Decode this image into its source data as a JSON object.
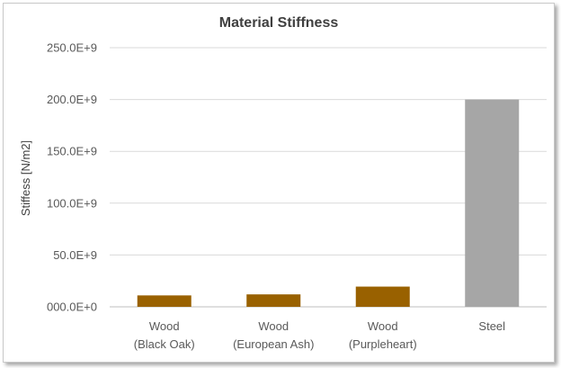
{
  "chart_data": {
    "type": "bar",
    "title": "Material Stiffness",
    "xlabel": "",
    "ylabel": "Stiffess [N/m2]",
    "categories": [
      [
        "Wood",
        "(Black Oak)"
      ],
      [
        "Wood",
        "(European Ash)"
      ],
      [
        "Wood",
        "(Purpleheart)"
      ],
      [
        "Steel"
      ]
    ],
    "values": [
      11000000000,
      12000000000,
      19500000000,
      200000000000
    ],
    "bar_colors": [
      "#996100",
      "#996100",
      "#996100",
      "#a6a6a6"
    ],
    "ylim": [
      0,
      250000000000
    ],
    "yticks": [
      0,
      50000000000,
      100000000000,
      150000000000,
      200000000000,
      250000000000
    ],
    "ytick_labels": [
      "000.0E+0",
      "50.0E+9",
      "100.0E+9",
      "150.0E+9",
      "200.0E+9",
      "250.0E+9"
    ],
    "grid": true,
    "legend": "none"
  }
}
